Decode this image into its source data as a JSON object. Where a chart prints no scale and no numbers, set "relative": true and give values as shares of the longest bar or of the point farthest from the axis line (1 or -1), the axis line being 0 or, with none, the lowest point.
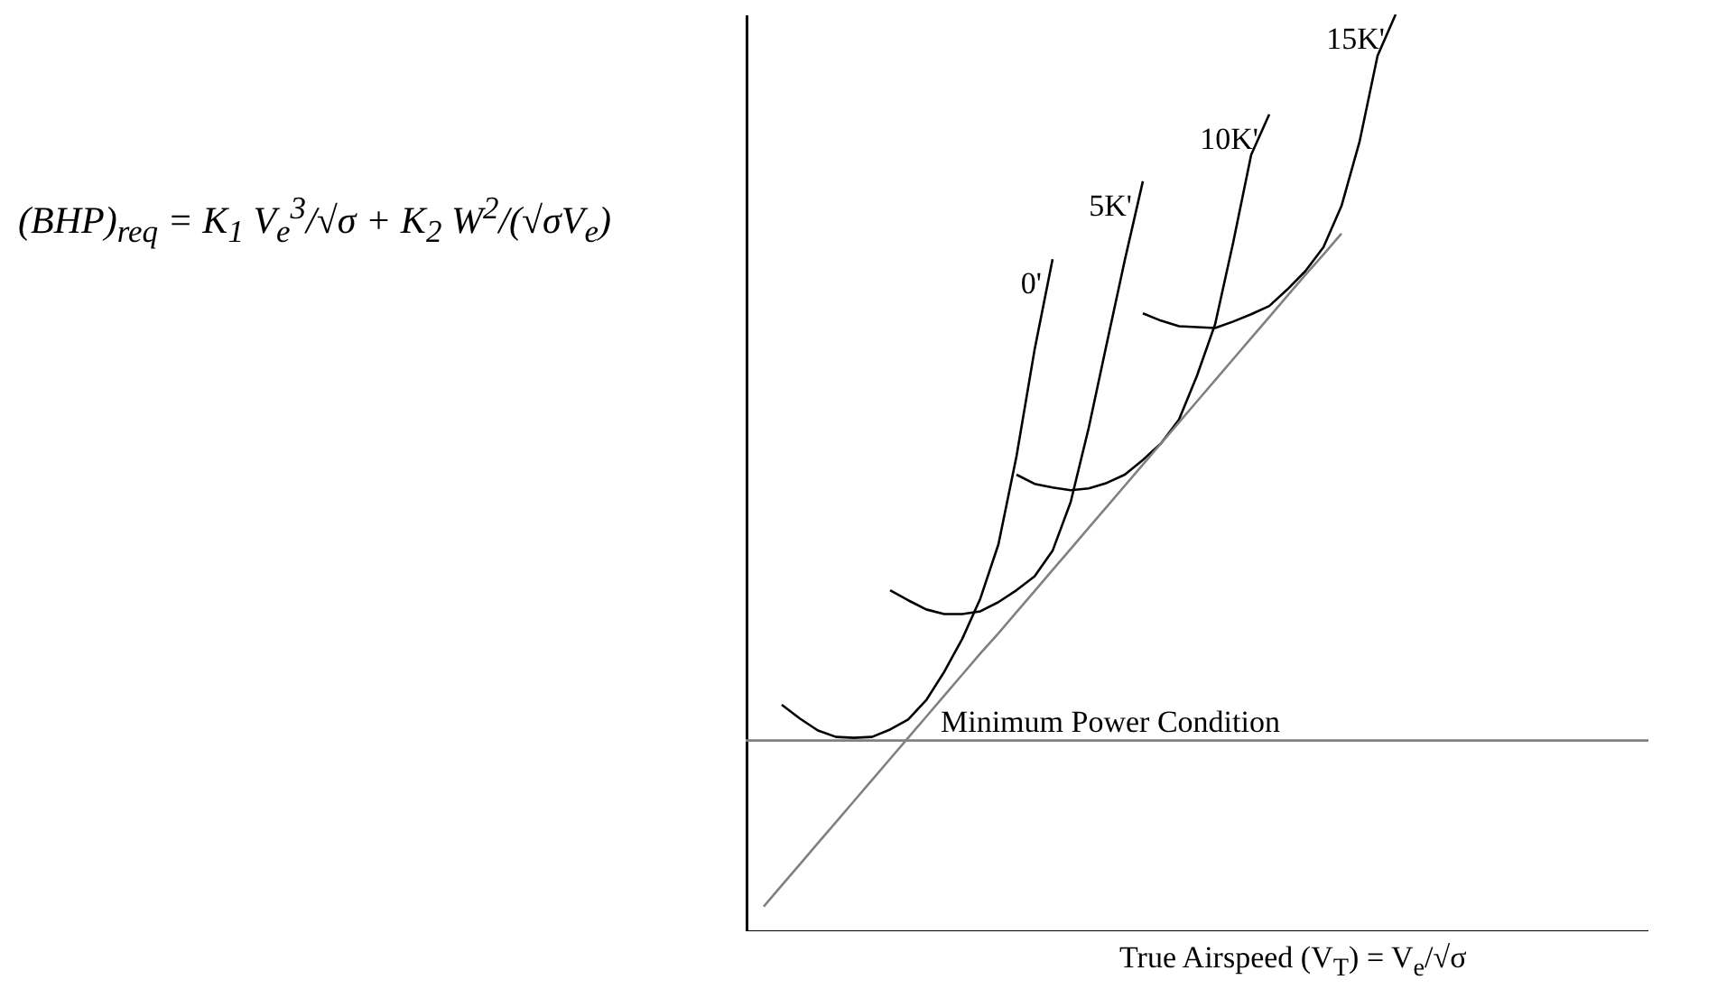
{
  "chart_data": {
    "type": "line",
    "relative": true,
    "xlabel": "True Airspeed (V$_{T}$) = V$_{e}$/√σ",
    "annotations": [
      "(BHP)$_{req}$ = K$_{1}$ V$_{e}$$^{3}$/√σ + K$_{2}$ W$^{2}$/(√σV$_{e}$)"
    ],
    "categories": [
      null,
      null,
      null,
      null,
      null,
      null,
      null,
      null,
      null,
      null,
      null,
      null,
      null,
      null,
      null,
      null,
      null,
      null,
      null,
      null,
      null,
      null,
      null,
      null,
      null,
      null,
      null,
      null,
      null,
      null,
      null,
      null,
      null,
      null,
      null,
      null,
      null,
      null,
      null,
      null,
      null,
      null,
      null,
      null,
      null,
      null,
      null,
      null,
      null,
      null,
      null
    ],
    "series": [
      {
        "name": "0'",
        "color": "#000000",
        "values": [
          null,
          null,
          0.247,
          0.232,
          0.219,
          0.212,
          0.211,
          0.212,
          0.22,
          0.231,
          0.252,
          0.283,
          0.319,
          0.363,
          0.422,
          0.518,
          0.634,
          0.733,
          null,
          null,
          null,
          null,
          null,
          null,
          null,
          null,
          null,
          null,
          null,
          null,
          null,
          null,
          null,
          null,
          null,
          null,
          null,
          null,
          null,
          null,
          null,
          null,
          null,
          null,
          null,
          null,
          null,
          null,
          null,
          null,
          null
        ]
      },
      {
        "name": "5K'",
        "color": "#000000",
        "values": [
          null,
          null,
          null,
          null,
          null,
          null,
          null,
          null,
          0.372,
          0.361,
          0.351,
          0.346,
          0.346,
          0.349,
          0.359,
          0.372,
          0.387,
          0.415,
          0.468,
          0.549,
          0.641,
          0.732,
          0.818,
          null,
          null,
          null,
          null,
          null,
          null,
          null,
          null,
          null,
          null,
          null,
          null,
          null,
          null,
          null,
          null,
          null,
          null,
          null,
          null,
          null,
          null,
          null,
          null,
          null,
          null,
          null,
          null
        ]
      },
      {
        "name": "10K'",
        "color": "#000000",
        "values": [
          null,
          null,
          null,
          null,
          null,
          null,
          null,
          null,
          null,
          null,
          null,
          null,
          null,
          null,
          null,
          0.498,
          0.488,
          0.484,
          0.481,
          0.483,
          0.489,
          0.498,
          0.514,
          0.532,
          0.558,
          0.606,
          0.662,
          0.751,
          0.847,
          0.891,
          null,
          null,
          null,
          null,
          null,
          null,
          null,
          null,
          null,
          null,
          null,
          null,
          null,
          null,
          null,
          null,
          null,
          null,
          null,
          null,
          null
        ]
      },
      {
        "name": "15K'",
        "color": "#000000",
        "values": [
          null,
          null,
          null,
          null,
          null,
          null,
          null,
          null,
          null,
          null,
          null,
          null,
          null,
          null,
          null,
          null,
          null,
          null,
          null,
          null,
          null,
          null,
          0.674,
          0.666,
          0.66,
          0.659,
          0.658,
          0.665,
          0.673,
          0.682,
          0.7,
          0.72,
          0.746,
          0.791,
          0.861,
          0.955,
          1.0,
          null,
          null,
          null,
          null,
          null,
          null,
          null,
          null,
          null,
          null,
          null,
          null,
          null,
          null
        ]
      },
      {
        "color": "#808080",
        "values": [
          null,
          0.027,
          0.05,
          0.073,
          0.096,
          0.119,
          0.142,
          0.165,
          0.188,
          0.211,
          0.234,
          0.257,
          0.28,
          0.303,
          0.325,
          0.348,
          0.371,
          0.394,
          0.417,
          0.44,
          0.463,
          0.486,
          0.509,
          0.532,
          0.555,
          0.578,
          0.601,
          0.624,
          0.647,
          0.67,
          0.693,
          0.716,
          0.738,
          0.761,
          null,
          null,
          null,
          null,
          null,
          null,
          null,
          null,
          null,
          null,
          null,
          null,
          null,
          null,
          null,
          null,
          null
        ]
      }
    ],
    "ref_lines": [
      {
        "axis": "y",
        "value": 0.208,
        "label": "Minimum Power Condition",
        "color": "#808080"
      }
    ],
    "line_style": "solid",
    "marker": "none",
    "grid": false
  }
}
